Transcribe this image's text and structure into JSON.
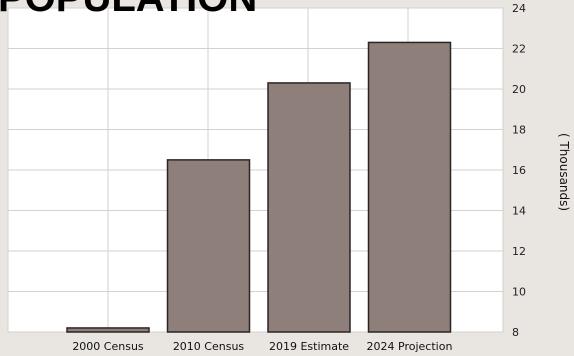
{
  "chart_data": {
    "type": "bar",
    "title": "POPULATION",
    "categories": [
      "2000 Census",
      "2010 Census",
      "2019 Estimate",
      "2024 Projection"
    ],
    "values": [
      8.2,
      16.5,
      20.3,
      22.3
    ],
    "ylabel": "( Thousands)",
    "ylim": [
      8,
      24
    ],
    "yticks": [
      "8",
      "10",
      "12",
      "14",
      "16",
      "18",
      "20",
      "22",
      "24"
    ],
    "y_axis_side": "right",
    "grid": true,
    "legend": "none",
    "colors": {
      "bar_fill": "#8e7f7b",
      "bar_stroke": "#2b2523",
      "plot_background": "#ffffff",
      "grid": "#d6d1ce",
      "page_background": "#e9e5e1"
    }
  }
}
